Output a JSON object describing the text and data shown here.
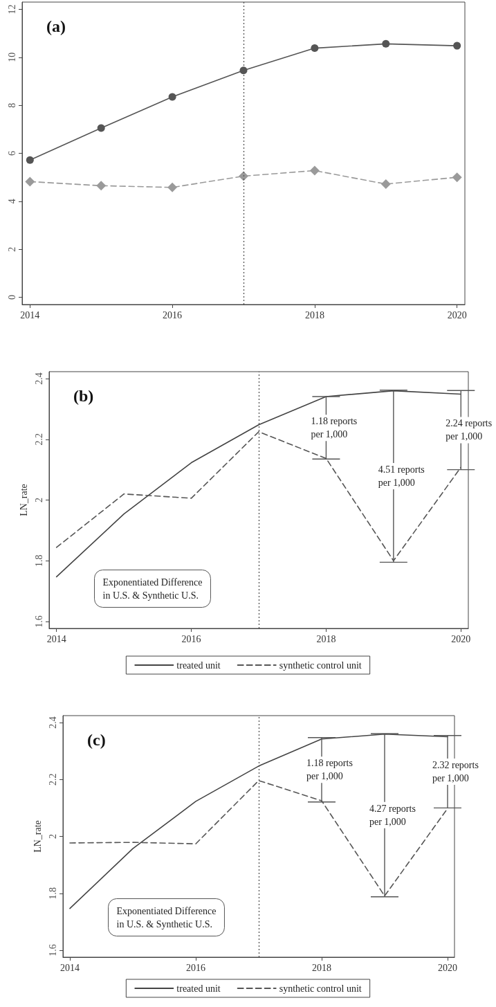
{
  "chart_data": [
    {
      "type": "line",
      "title": "(a)",
      "x": [
        2014,
        2015,
        2016,
        2017,
        2018,
        2019,
        2020
      ],
      "series": [
        {
          "color": "#555555",
          "marker": "circle",
          "line_style": "solid",
          "values": [
            5.72,
            7.05,
            8.35,
            9.45,
            10.38,
            10.56,
            10.48
          ]
        },
        {
          "color": "#9a9a9a",
          "marker": "diamond",
          "line_style": "dashed",
          "values": [
            4.82,
            4.65,
            4.58,
            5.05,
            5.28,
            4.72,
            5.0
          ]
        }
      ],
      "xlim": [
        2013.89,
        2020.11
      ],
      "xticks": [
        2014,
        2016,
        2018,
        2020
      ],
      "ylim": [
        -0.3,
        12.3
      ],
      "yticks": [
        0,
        2,
        4,
        6,
        8,
        10,
        12
      ],
      "ref_lines": [
        {
          "axis": "x",
          "value": 2017,
          "color": "#555555",
          "line_style": "dotted"
        }
      ],
      "grid": false,
      "legend": false
    },
    {
      "type": "line",
      "title": "(b)",
      "ylabel": "LN_rate",
      "x": [
        2014,
        2015,
        2016,
        2017,
        2018,
        2019,
        2020
      ],
      "series": [
        {
          "name": "treated unit",
          "color": "#444444",
          "line_style": "solid",
          "values": [
            1.747,
            1.954,
            2.123,
            2.248,
            2.341,
            2.36,
            2.349
          ]
        },
        {
          "name": "synthetic control unit",
          "color": "#555555",
          "line_style": "dashed",
          "values": [
            1.844,
            2.02,
            2.006,
            2.225,
            2.137,
            1.8,
            2.108
          ],
          "errors": [
            null,
            null,
            null,
            null,
            [
              2.135,
              2.341
            ],
            [
              1.795,
              2.362
            ],
            [
              2.1,
              2.361
            ]
          ]
        }
      ],
      "xlim": [
        2013.89,
        2020.11
      ],
      "xticks": [
        2014,
        2016,
        2018,
        2020
      ],
      "ylim": [
        1.577,
        2.423
      ],
      "yticks": [
        1.6,
        1.8,
        2,
        2.2,
        2.4
      ],
      "ref_lines": [
        {
          "axis": "x",
          "value": 2017,
          "color": "#555555",
          "line_style": "dotted"
        }
      ],
      "annotations": [
        "Exponentiated Difference\nin U.S. & Synthetic U.S.",
        "1.18 reports\nper 1,000",
        "4.51 reports\nper 1,000",
        "2.24 reports\nper 1,000"
      ],
      "marker": "none",
      "grid": false,
      "legend": "bottom"
    },
    {
      "type": "line",
      "title": "(c)",
      "ylabel": "LN_rate",
      "x": [
        2014,
        2015,
        2016,
        2017,
        2018,
        2019,
        2020
      ],
      "series": [
        {
          "name": "treated unit",
          "color": "#444444",
          "line_style": "solid",
          "values": [
            1.747,
            1.957,
            2.123,
            2.247,
            2.342,
            2.359,
            2.35
          ]
        },
        {
          "name": "synthetic control unit",
          "color": "#555555",
          "line_style": "dashed",
          "values": [
            1.977,
            1.979,
            1.974,
            2.196,
            2.125,
            1.791,
            2.098
          ],
          "errors": [
            null,
            null,
            null,
            null,
            [
              2.121,
              2.347
            ],
            [
              1.788,
              2.361
            ],
            [
              2.1,
              2.354
            ]
          ]
        }
      ],
      "xlim": [
        2013.89,
        2020.11
      ],
      "xticks": [
        2014,
        2016,
        2018,
        2020
      ],
      "ylim": [
        1.576,
        2.424
      ],
      "yticks": [
        1.6,
        1.8,
        2,
        2.2,
        2.4
      ],
      "ref_lines": [
        {
          "axis": "x",
          "value": 2017,
          "color": "#555555",
          "line_style": "dotted"
        }
      ],
      "annotations": [
        "Exponentiated Difference\nin U.S. & Synthetic U.S.",
        "1.18 reports\nper 1,000",
        "4.27 reports\nper 1,000",
        "2.32 reports\nper 1,000"
      ],
      "marker": "none",
      "grid": false,
      "legend": "bottom"
    }
  ]
}
